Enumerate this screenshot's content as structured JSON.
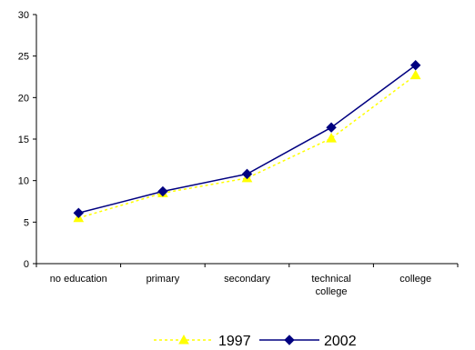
{
  "chart_data": {
    "type": "line",
    "categories": [
      "no education",
      "primary",
      "secondary",
      "technical\ncollege",
      "college"
    ],
    "ylim": [
      0,
      30
    ],
    "yticks": [
      0,
      5,
      10,
      15,
      20,
      25,
      30
    ],
    "grid": false,
    "legend_position": "bottom",
    "series": [
      {
        "name": "1997",
        "values": [
          5.5,
          8.5,
          10.3,
          15.1,
          22.7
        ],
        "color": "#ffff00",
        "line_style": "dashed",
        "marker": "triangle"
      },
      {
        "name": "2002",
        "values": [
          6.1,
          8.7,
          10.8,
          16.4,
          23.9
        ],
        "color": "#000080",
        "line_style": "solid",
        "marker": "diamond"
      }
    ]
  }
}
